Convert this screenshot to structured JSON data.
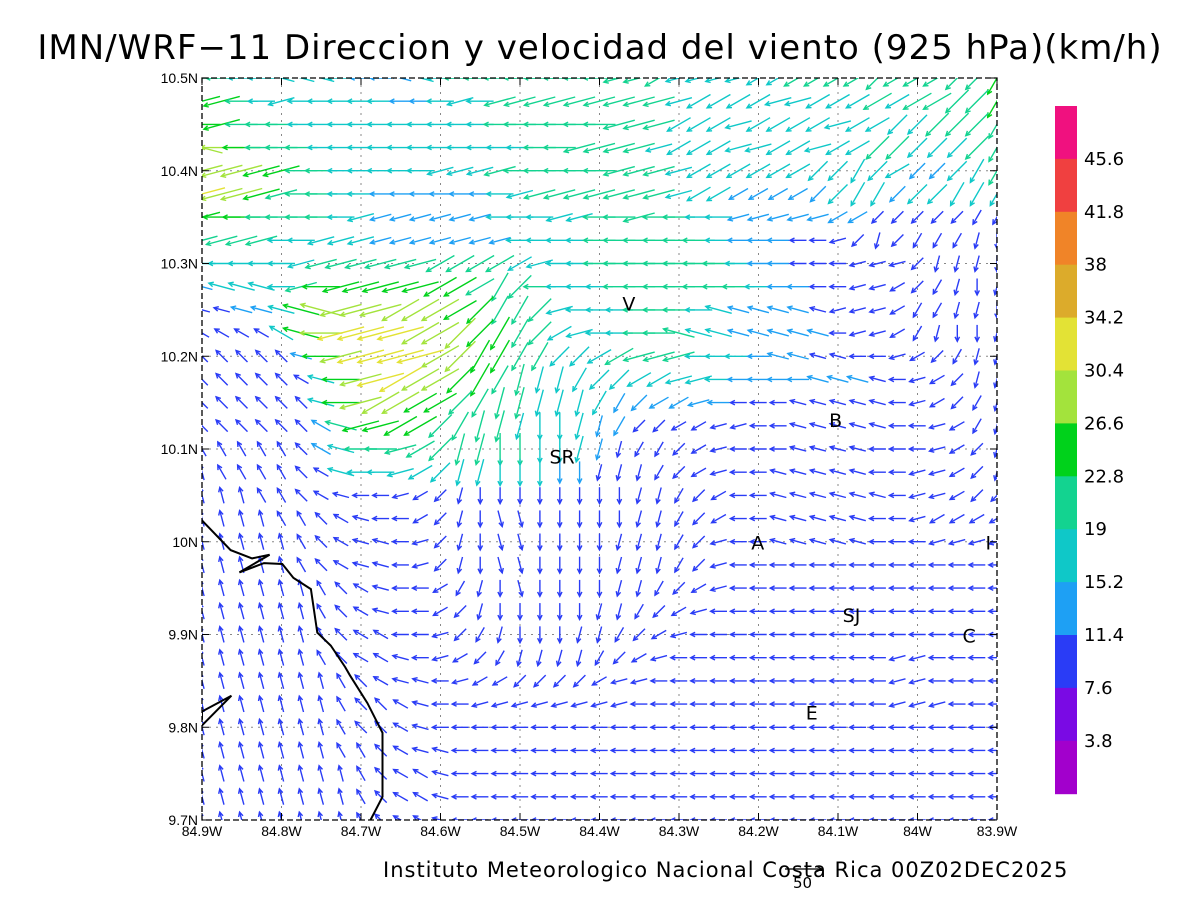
{
  "title": "IMN/WRF−11 Direccion y velocidad del viento (925 hPa)(km/h)",
  "credit": "Instituto Meteorologico Nacional Costa Rica 00Z02DEC2025",
  "reference_vector": {
    "label": "50",
    "value": 50
  },
  "map": {
    "lon_range": [
      -84.9,
      -83.9
    ],
    "lat_range": [
      9.7,
      10.5
    ],
    "grid": "dotted",
    "x_ticks": [
      "84.9W",
      "84.8W",
      "84.7W",
      "84.6W",
      "84.5W",
      "84.4W",
      "84.3W",
      "84.2W",
      "84.1W",
      "84W",
      "83.9W"
    ],
    "y_ticks": [
      "9.7N",
      "9.8N",
      "9.9N",
      "10N",
      "10.1N",
      "10.2N",
      "10.3N",
      "10.4N",
      "10.5N"
    ]
  },
  "places": [
    {
      "label": "V",
      "lon": -84.363,
      "lat": 10.257
    },
    {
      "label": "SR",
      "lon": -84.447,
      "lat": 10.092
    },
    {
      "label": "B",
      "lon": -84.103,
      "lat": 10.131
    },
    {
      "label": "A",
      "lon": -84.201,
      "lat": 9.999
    },
    {
      "label": "I",
      "lon": -83.911,
      "lat": 9.999
    },
    {
      "label": "SJ",
      "lon": -84.083,
      "lat": 9.921
    },
    {
      "label": "C",
      "lon": -83.935,
      "lat": 9.899
    },
    {
      "label": "E",
      "lon": -84.133,
      "lat": 9.816
    }
  ],
  "colorbar": {
    "labels": [
      "45.6",
      "41.8",
      "38",
      "34.2",
      "30.4",
      "26.6",
      "22.8",
      "19",
      "15.2",
      "11.4",
      "7.6",
      "3.8"
    ],
    "colors": [
      "#f0117f",
      "#f04040",
      "#f08428",
      "#dcab2b",
      "#e3e235",
      "#a3e33c",
      "#00d21b",
      "#13d390",
      "#0fc8c8",
      "#1ea0f4",
      "#2a3cf6",
      "#7a0ae4",
      "#a200cc"
    ]
  },
  "coastline": {
    "segments": [
      [
        [
          -84.9,
          10.023
        ],
        [
          -84.864,
          9.991
        ],
        [
          -84.837,
          9.982
        ],
        [
          -84.815,
          9.986
        ],
        [
          -84.853,
          9.967
        ],
        [
          -84.822,
          9.977
        ],
        [
          -84.799,
          9.976
        ],
        [
          -84.785,
          9.961
        ],
        [
          -84.763,
          9.949
        ],
        [
          -84.755,
          9.902
        ],
        [
          -84.738,
          9.888
        ],
        [
          -84.72,
          9.865
        ],
        [
          -84.714,
          9.856
        ],
        [
          -84.692,
          9.826
        ],
        [
          -84.673,
          9.794
        ],
        [
          -84.673,
          9.725
        ],
        [
          -84.688,
          9.7
        ]
      ],
      [
        [
          -84.9,
          9.808
        ],
        [
          -84.9,
          9.817
        ],
        [
          -84.863,
          9.834
        ],
        [
          -84.9,
          9.802
        ]
      ]
    ]
  },
  "wind_field": {
    "cols": 41,
    "rows": 33,
    "encoding": "Each string is one row from north (10.5N) to south (9.7N), 41 grid points from 84.9W to 83.9W at 0.025 deg spacing. Each character encodes direction the wind blows toward: A=east, then 15 degree steps counter-clockwise (G=north, M=west, S=south).",
    "direction_rows": [
      "MMMMLLLMMMLLMMMMMMMMMNNONNNNOOOOOOPOOOPPQ",
      "NNMMNMMMMMMMMNMNNNNNNNNNNOOOONNOOOOOOOPPQ",
      "MNMMMMMMMMMMMMMMMMMMMNNNOOONOOOONOOPPPPPQ",
      "LMMMMMMMMMMMMMMMMMMNNNNNOOONNOONOOPPPPPPQ",
      "NNNNNMMMMMMMNNNNMMMMMNNNNOOOOOOPPQPOPPPQQ",
      "NNNNNMMMMMMMMMMMNNNNNNNNNOOOOOOPPQQPPPQQQ",
      "NMMMMMMMNNNNNNNMMMNNMMNMMMMNNNNNOOPPPPPQQ",
      "NNNNMMNNNNNNNNNNMMMMMMMMMMMMMMMMNPRPQQQRS",
      "MMMMMNNNNNNNOOOOONMMMMMMMMMMMMMMMNNNPRRRS",
      "LLLLMNMNNNNNOOOQPMMMMMMMMMMMMMMMMNNOPQRSR",
      "LLLLLLLNNNOOOOPQQPNMMMMMMMLLLLLLNNNOQQRRS",
      "KKKKKLMNNNNOOPPQQPONMMMMLLLLLLLLMNNOQRSSR",
      "JJJJJLMNNNNNOPQQQQPPOONNNMMMMLLLLMMNOPQRR",
      "JJJJJKLMNNOOOPQQRRRQPPOONNMMMMMLLLLMNOPRR",
      "JJJJJJLMNOOOOPQRRRRRQQPOONMMMMLLLLLMNOPQR",
      "JJJJJJKLNNOOPQRRRSSRRQPPOONNMMLLLLLMMNOQR",
      "IIIIIJKLMMNOPRRSSSSRRRQQPONMMMLLLLMMMNOPR",
      "HIIIIJKLMMNOPRRSSSSSRRRQPONMMLLLLLMMNNOPR",
      "HHHIIJKLMMNOPRSSSSSSSSRRQPOMMLLLLLLMNNOPP",
      "HHHHIIJKLMMOPRSTTSSSSSRRQPOMMLLLLLMMNOOOO",
      "HHHHHIJKLLMNPRSTTSSSSRRRQPNMMLLLLLMMMNNNN",
      "HHHHHIJKLLMNPRSTTSSSSRRRQPNMMMMMMMMMMMMMM",
      "HHHHHHIJKLMMOQRSTSSSSRRQPONMMMMMMMMMMMMMM",
      "HHHHHHIJKLMMOPRSSSSSRRQPONMMMMMMMMMMMMMMM",
      "HHHHHHIJKKMMNPQRSSSRRQPONMMMMMMMMMMMMMMMM",
      "HHHHHHIJKKLMNOPQRRRRQPONMMMMMMMMMMMNNMMMM",
      "HHHHHHHIJKLLMNOOPPPPONNMMMMMMMMMMMMNNMMMM",
      "HHHHHHHIJJKLMMNNNNNNNNMMMMMMMMMMMMMNNNMMM",
      "HHHHHHHIJJKLMMMMMMMMMMMMMMMMMMMMMMMMMMMMM",
      "HHHHHHHIIJKLLMMMMMMMMMMMMMMMMMMMMMMMMMMMM",
      "HHHHHHHHIJKKLMMMMMMMMMMMMMMMMMMMMMMMMMMMM",
      "HHHHHHHHIJKKLMMMMMMMMMMMMMMMMMMMMMMMMMMMM",
      "HHHHHHHHIJKKLMMMMMMMMMMMMMMMMMMMMMMMMMMMM"
    ],
    "speed_encoding": "Each character is a speed class 0-9 (0 = below 3.8 km/h ... 9 = above 45.6 km/h), matching the colorbar bins.",
    "speed_rows": [
      "55444444333445555555555544444455555555556",
      "66544444443344455555555544444444445455556",
      "66555444444444455555555544444444444445555",
      "77655544444444444555555444444444445544455",
      "77766554444444455555555544444444444433445",
      "87765554433333344555555544433333444344444",
      "66655554433333344444555554433333332222222",
      "55554444433333334444555555433322222222222",
      "44444455555555554444555555543322222222222",
      "34444566666666555544455555554332222222222",
      "22334677777776655544445554433332222222222",
      "22224678888777665544445554433333222222222",
      "22222367888877665544455554443332222222222",
      "22222246788776655444444444433333332222222",
      "22222246777665555444433333322222222222222",
      "22222235666655554444332222222222222222222",
      "22222234555555555444322222222222222222222",
      "22222224444444444433222222222222222222222",
      "22222222222222222222222222222222222222222",
      "22222222222222222222222222222222222222222",
      "22222222222222222222222222222222222222222",
      "22222222222222222222222222222222222222222",
      "22222222222222222222222222222222222222222",
      "22222222222222222222222222222222222222222",
      "22222222222222222222222222222222222222222",
      "22222222222222222222222222222222222222222",
      "22222222222222222222222222222222222222222",
      "22222222222222222222222222222222222222222",
      "22222222222222222222222222222222222222222",
      "22222222222222222222222222222222222222222",
      "22222222222222222222222222222222222222222",
      "22222222222222222222222222222222222222222",
      "22222222222222222222222222222222222222222"
    ]
  }
}
